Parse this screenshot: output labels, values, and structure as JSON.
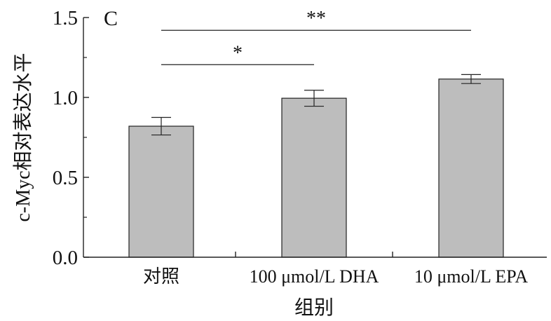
{
  "chart_data": {
    "type": "bar",
    "panel_label": "C",
    "categories": [
      "对照",
      "100 μmol/L DHA",
      "10 μmol/L EPA"
    ],
    "values": [
      0.82,
      0.995,
      1.115
    ],
    "errors": [
      0.055,
      0.05,
      0.028
    ],
    "xlabel": "组别",
    "ylabel": "c-Myc相对表达水平",
    "ylim": [
      0,
      1.5
    ],
    "yticks": [
      "0.0",
      "0.5",
      "1.0",
      "1.5"
    ],
    "ytick_values": [
      0,
      0.5,
      1.0,
      1.5
    ],
    "grid": false,
    "bar_color": "#bdbdbd",
    "bar_edge_color": "#222222",
    "significance": [
      {
        "from": 0,
        "to": 1,
        "label": "*",
        "y": 1.205
      },
      {
        "from": 0,
        "to": 2,
        "label": "**",
        "y": 1.42
      }
    ]
  }
}
